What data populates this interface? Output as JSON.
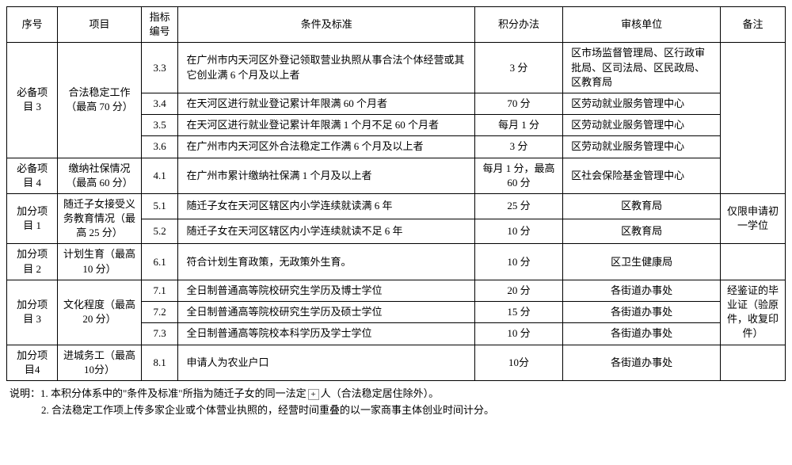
{
  "headers": {
    "seq": "序号",
    "project": "项目",
    "code": "指标编号",
    "criteria": "条件及标准",
    "score": "积分办法",
    "audit": "审核单位",
    "notes": "备注"
  },
  "rows": [
    {
      "seq": "必备项目 3",
      "project": "合法稳定工作（最高 70 分）",
      "sub": [
        {
          "code": "3.3",
          "criteria": "在广州市内天河区外登记领取营业执照从事合法个体经营或其它创业满 6 个月及以上者",
          "score": "3 分",
          "audit": "区市场监督管理局、区行政审批局、区司法局、区民政局、区教育局"
        },
        {
          "code": "3.4",
          "criteria": "在天河区进行就业登记累计年限满 60 个月者",
          "score": "70 分",
          "audit": "区劳动就业服务管理中心"
        },
        {
          "code": "3.5",
          "criteria": "在天河区进行就业登记累计年限满 1 个月不足 60 个月者",
          "score": "每月 1 分",
          "audit": "区劳动就业服务管理中心"
        },
        {
          "code": "3.6",
          "criteria": "在广州市内天河区外合法稳定工作满 6 个月及以上者",
          "score": "3 分",
          "audit": "区劳动就业服务管理中心"
        }
      ],
      "notes": ""
    },
    {
      "seq": "必备项目 4",
      "project": "缴纳社保情况（最高 60 分）",
      "sub": [
        {
          "code": "4.1",
          "criteria": "在广州市累计缴纳社保满 1 个月及以上者",
          "score": "每月 1 分，最高 60 分",
          "audit": "区社会保险基金管理中心"
        }
      ],
      "notes": ""
    },
    {
      "seq": "加分项目 1",
      "project": "随迁子女接受义务教育情况（最高 25 分）",
      "sub": [
        {
          "code": "5.1",
          "criteria": "随迁子女在天河区辖区内小学连续就读满 6 年",
          "score": "25 分",
          "audit": "区教育局"
        },
        {
          "code": "5.2",
          "criteria": "随迁子女在天河区辖区内小学连续就读不足 6 年",
          "score": "10 分",
          "audit": "区教育局"
        }
      ],
      "notes": "仅限申请初一学位"
    },
    {
      "seq": "加分项目 2",
      "project": "计划生育（最高 10 分）",
      "sub": [
        {
          "code": "6.1",
          "criteria": "符合计划生育政策，无政策外生育。",
          "score": "10 分",
          "audit": "区卫生健康局"
        }
      ],
      "notes": ""
    },
    {
      "seq": "加分项目 3",
      "project": "文化程度（最高 20 分）",
      "sub": [
        {
          "code": "7.1",
          "criteria": "全日制普通高等院校研究生学历及博士学位",
          "score": "20 分",
          "audit": "各街道办事处"
        },
        {
          "code": "7.2",
          "criteria": "全日制普通高等院校研究生学历及硕士学位",
          "score": "15 分",
          "audit": "各街道办事处"
        },
        {
          "code": "7.3",
          "criteria": "全日制普通高等院校本科学历及学士学位",
          "score": "10 分",
          "audit": "各街道办事处"
        }
      ],
      "notes": "经鉴证的毕业证（验原件，收复印件）"
    },
    {
      "seq": "加分项目4",
      "project": "进城务工（最高10分）",
      "sub": [
        {
          "code": "8.1",
          "criteria": "申请人为农业户口",
          "score": "10分",
          "audit": "各街道办事处"
        }
      ],
      "notes": ""
    }
  ],
  "footnotes": {
    "line1a": "说明：1. 本积分体系中的\"条件及标准\"所指为随迁子女的同一法定",
    "line1b": "人（合法稳定居住除外）。",
    "line2": "2. 合法稳定工作项上传多家企业或个体营业执照的，经营时间重叠的以一家商事主体创业时间计分。"
  }
}
